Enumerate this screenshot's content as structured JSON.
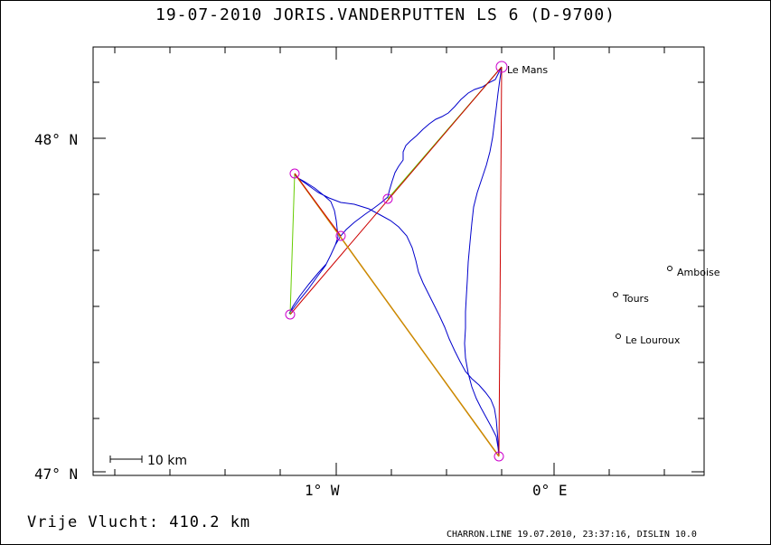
{
  "header": {
    "title": "19-07-2010    JORIS.VANDERPUTTEN    LS 6 (D-9700)"
  },
  "footer": {
    "distance": "Vrije Vlucht:  410.2 km",
    "credit": "CHARRON.LINE 19.07.2010, 23:37:16, DISLIN 10.0"
  },
  "map": {
    "lat_labels": [
      "48° N",
      "47° N"
    ],
    "lon_labels": [
      "1° W",
      "0° E"
    ],
    "scale_label": "10 km",
    "cities": [
      "Le Mans",
      "Amboise",
      "Tours",
      "Le Louroux"
    ],
    "colors": {
      "track": "#0000cc",
      "route_red": "#cc0000",
      "route_green": "#66cc00",
      "route_orange": "#cc8800",
      "turnpoint": "#cc00cc"
    }
  }
}
